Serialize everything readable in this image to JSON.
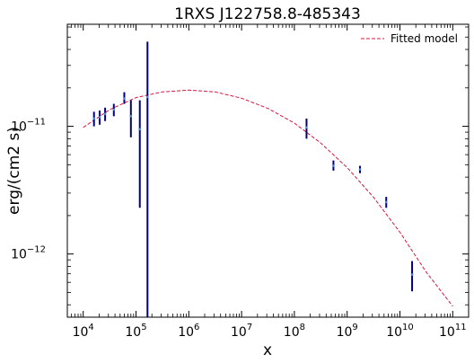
{
  "chart_data": {
    "type": "scatter",
    "title": "1RXS J122758.8-485343",
    "xlabel": "x",
    "ylabel": "erg/(cm2 s)",
    "xscale": "log",
    "yscale": "log",
    "xlim": [
      5000,
      200000000000
    ],
    "ylim": [
      3.2e-13,
      6.3e-11
    ],
    "legend": {
      "placement": "top-right",
      "entries": [
        "Fitted model"
      ]
    },
    "grid": false,
    "x_ticks": [
      {
        "value": 10000,
        "base": "10",
        "exp": "4"
      },
      {
        "value": 100000,
        "base": "10",
        "exp": "5"
      },
      {
        "value": 1000000,
        "base": "10",
        "exp": "6"
      },
      {
        "value": 10000000,
        "base": "10",
        "exp": "7"
      },
      {
        "value": 100000000,
        "base": "10",
        "exp": "8"
      },
      {
        "value": 1000000000,
        "base": "10",
        "exp": "9"
      },
      {
        "value": 10000000000,
        "base": "10",
        "exp": "10"
      },
      {
        "value": 100000000000,
        "base": "10",
        "exp": "11"
      }
    ],
    "y_ticks": [
      {
        "value": 1e-12,
        "base": "10",
        "exp": "−12"
      },
      {
        "value": 1e-11,
        "base": "10",
        "exp": "−11"
      }
    ],
    "series": [
      {
        "kind": "errorbar",
        "color": "#00007f",
        "points": [
          {
            "x": 16000,
            "y": 1.15e-11,
            "ylo": 1e-11,
            "yhi": 1.3e-11
          },
          {
            "x": 20500,
            "y": 1.18e-11,
            "ylo": 1.03e-11,
            "yhi": 1.33e-11
          },
          {
            "x": 26000,
            "y": 1.25e-11,
            "ylo": 1.1e-11,
            "yhi": 1.4e-11
          },
          {
            "x": 38000,
            "y": 1.35e-11,
            "ylo": 1.2e-11,
            "yhi": 1.5e-11
          },
          {
            "x": 60000,
            "y": 1.65e-11,
            "ylo": 1.5e-11,
            "yhi": 1.85e-11
          },
          {
            "x": 80000,
            "y": 1.2e-11,
            "ylo": 8.2e-12,
            "yhi": 1.6e-11
          },
          {
            "x": 118000,
            "y": 9.5e-12,
            "ylo": 2.3e-12,
            "yhi": 1.6e-11
          },
          {
            "x": 165000,
            "y": 1.7e-11,
            "ylo": 3.2e-13,
            "yhi": 4.6e-11
          },
          {
            "x": 170000000,
            "y": 9.8e-12,
            "ylo": 8e-12,
            "yhi": 1.15e-11
          },
          {
            "x": 550000000,
            "y": 4.9e-12,
            "ylo": 4.5e-12,
            "yhi": 5.4e-12
          },
          {
            "x": 1750000000,
            "y": 4.6e-12,
            "ylo": 4.3e-12,
            "yhi": 4.9e-12
          },
          {
            "x": 5500000000,
            "y": 2.55e-12,
            "ylo": 2.3e-12,
            "yhi": 2.8e-12
          },
          {
            "x": 17000000000,
            "y": 6.9e-13,
            "ylo": 5.1e-13,
            "yhi": 8.8e-13
          }
        ]
      },
      {
        "name": "Fitted model",
        "kind": "line",
        "color": "#dc143c",
        "dash": "dashed",
        "x": [
          10000,
          31600,
          100000,
          316000,
          1000000,
          3160000,
          10000000,
          31600000,
          100000000,
          316000000,
          1000000000,
          3160000000,
          10000000000,
          31600000000,
          100000000000
        ],
        "y": [
          9.8e-12,
          1.35e-11,
          1.68e-11,
          1.86e-11,
          1.92e-11,
          1.86e-11,
          1.66e-11,
          1.38e-11,
          1.06e-11,
          7.4e-12,
          4.75e-12,
          2.78e-12,
          1.48e-12,
          7.2e-13,
          3.9e-13
        ]
      }
    ]
  }
}
